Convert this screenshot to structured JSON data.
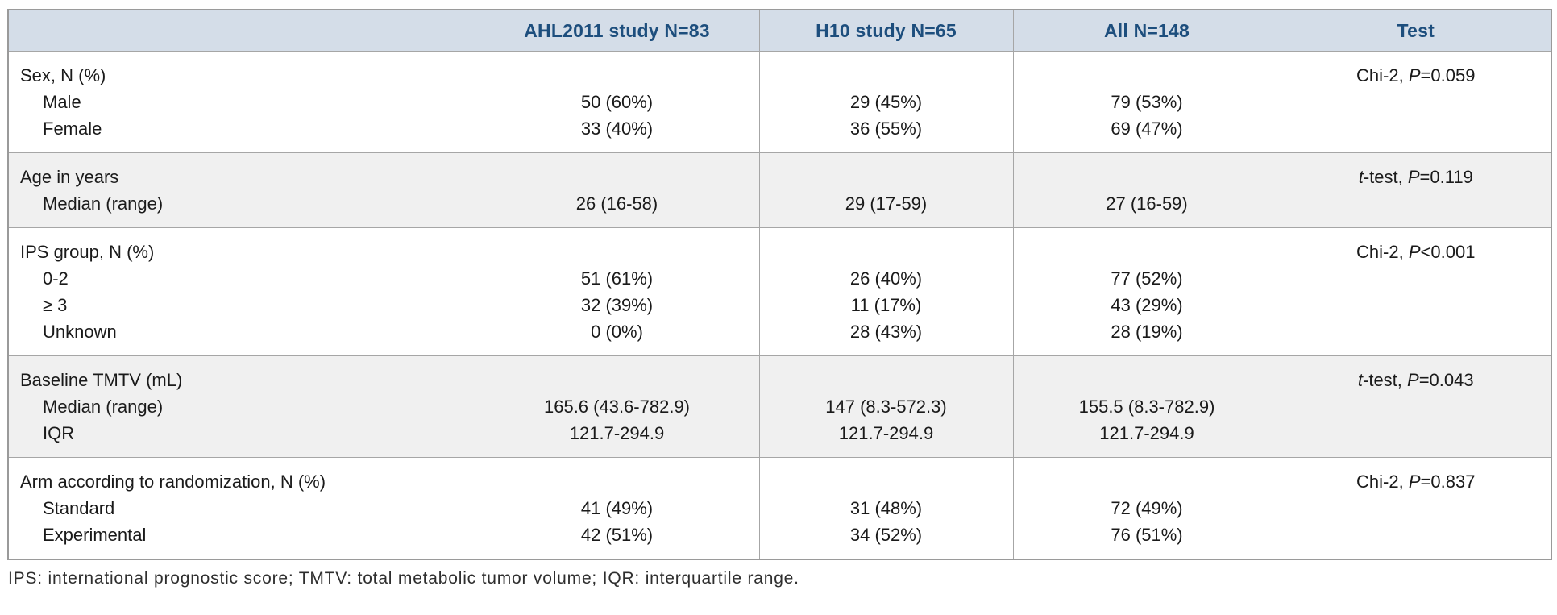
{
  "table": {
    "columns": [
      "",
      "AHL2011 study N=83",
      "H10 study N=65",
      "All N=148",
      "Test"
    ],
    "sections": [
      {
        "label": "Sex, N (%)",
        "rows": [
          "Male",
          "Female"
        ],
        "cells": [
          [
            "50 (60%)",
            "33 (40%)"
          ],
          [
            "29 (45%)",
            "36 (55%)"
          ],
          [
            "79 (53%)",
            "69 (47%)"
          ]
        ],
        "test": [
          {
            "t": "Chi-2, "
          },
          {
            "t": "P",
            "i": true
          },
          {
            "t": "=0.059"
          }
        ],
        "shaded": false
      },
      {
        "label": "Age in years",
        "rows": [
          "Median (range)"
        ],
        "cells": [
          [
            "26 (16-58)"
          ],
          [
            "29 (17-59)"
          ],
          [
            "27 (16-59)"
          ]
        ],
        "test": [
          {
            "t": "t",
            "i": true
          },
          {
            "t": "-test, "
          },
          {
            "t": "P",
            "i": true
          },
          {
            "t": "=0.119"
          }
        ],
        "shaded": true
      },
      {
        "label": "IPS group, N (%)",
        "rows": [
          "0-2",
          "≥ 3",
          "Unknown"
        ],
        "cells": [
          [
            "51 (61%)",
            "32 (39%)",
            "0 (0%)"
          ],
          [
            "26 (40%)",
            "11 (17%)",
            "28 (43%)"
          ],
          [
            "77 (52%)",
            "43 (29%)",
            "28 (19%)"
          ]
        ],
        "test": [
          {
            "t": "Chi-2, "
          },
          {
            "t": "P",
            "i": true
          },
          {
            "t": "<0.001"
          }
        ],
        "shaded": false
      },
      {
        "label": "Baseline TMTV (mL)",
        "rows": [
          "Median (range)",
          "IQR"
        ],
        "cells": [
          [
            "165.6 (43.6-782.9)",
            "121.7-294.9"
          ],
          [
            "147 (8.3-572.3)",
            "121.7-294.9"
          ],
          [
            "155.5 (8.3-782.9)",
            "121.7-294.9"
          ]
        ],
        "test": [
          {
            "t": "t",
            "i": true
          },
          {
            "t": "-test, "
          },
          {
            "t": "P",
            "i": true
          },
          {
            "t": "=0.043"
          }
        ],
        "shaded": true
      },
      {
        "label": "Arm according to randomization, N (%)",
        "rows": [
          "Standard",
          "Experimental"
        ],
        "cells": [
          [
            "41 (49%)",
            "42 (51%)"
          ],
          [
            "31 (48%)",
            "34 (52%)"
          ],
          [
            "72 (49%)",
            "76 (51%)"
          ]
        ],
        "test": [
          {
            "t": "Chi-2, "
          },
          {
            "t": "P",
            "i": true
          },
          {
            "t": "=0.837"
          }
        ],
        "shaded": false
      }
    ],
    "footnote": "IPS: international prognostic score; TMTV: total metabolic tumor volume; IQR: interquartile range."
  },
  "colors": {
    "header_bg": "#d4dde8",
    "header_text": "#1d4e7d",
    "shaded_bg": "#f0f0f0",
    "border_outer": "#9a9a9a",
    "border_inner": "#a6a6a6"
  }
}
